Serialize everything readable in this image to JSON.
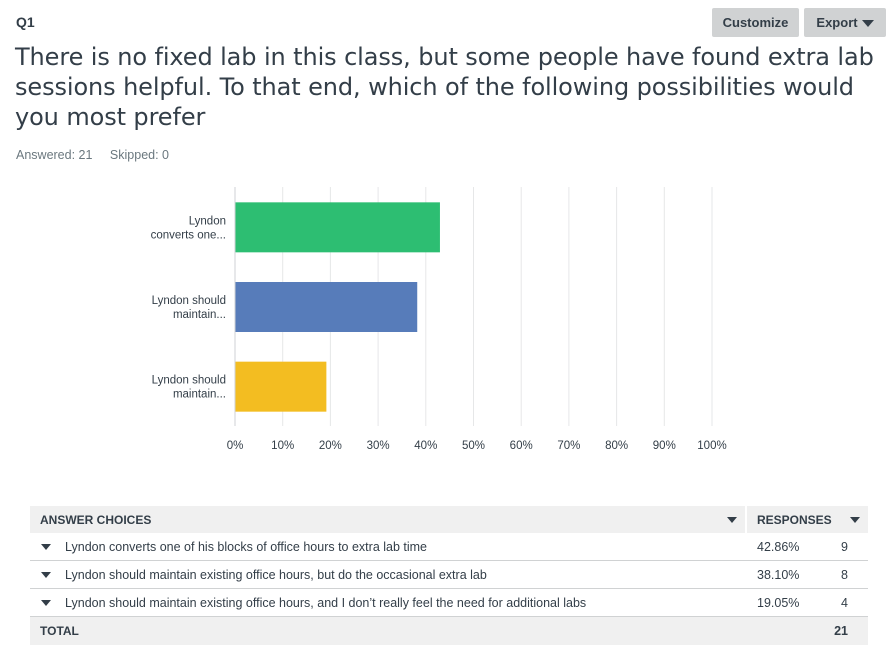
{
  "question": {
    "label": "Q1",
    "title": "There is no fixed lab in this class, but some people have found extra lab sessions helpful. To that end, which of the following possibilities would you most prefer",
    "answered": "Answered: 21",
    "skipped": "Skipped: 0"
  },
  "toolbar": {
    "customize_label": "Customize",
    "export_label": "Export"
  },
  "chart_data": {
    "type": "bar",
    "orientation": "horizontal",
    "categories": [
      "Lyndon converts one...",
      "Lyndon should maintain...",
      "Lyndon should maintain..."
    ],
    "category_lines": [
      [
        "Lyndon",
        "converts one..."
      ],
      [
        "Lyndon should",
        "maintain..."
      ],
      [
        "Lyndon should",
        "maintain..."
      ]
    ],
    "values": [
      42.86,
      38.1,
      19.05
    ],
    "colors": [
      "#2dbe72",
      "#577cba",
      "#f3bd21"
    ],
    "xlim": [
      0,
      100
    ],
    "ticks": [
      "0%",
      "10%",
      "20%",
      "30%",
      "40%",
      "50%",
      "60%",
      "70%",
      "80%",
      "90%",
      "100%"
    ],
    "grid": true
  },
  "table": {
    "header_choices": "ANSWER CHOICES",
    "header_responses": "RESPONSES",
    "rows": [
      {
        "choice": "Lyndon converts one of his blocks of office hours to extra lab time",
        "pct": "42.86%",
        "count": "9"
      },
      {
        "choice": "Lyndon should maintain existing office hours, but do the occasional extra lab",
        "pct": "38.10%",
        "count": "8"
      },
      {
        "choice": "Lyndon should maintain existing office hours, and I don’t really feel the need for additional labs",
        "pct": "19.05%",
        "count": "4"
      }
    ],
    "total_label": "TOTAL",
    "total_count": "21"
  }
}
